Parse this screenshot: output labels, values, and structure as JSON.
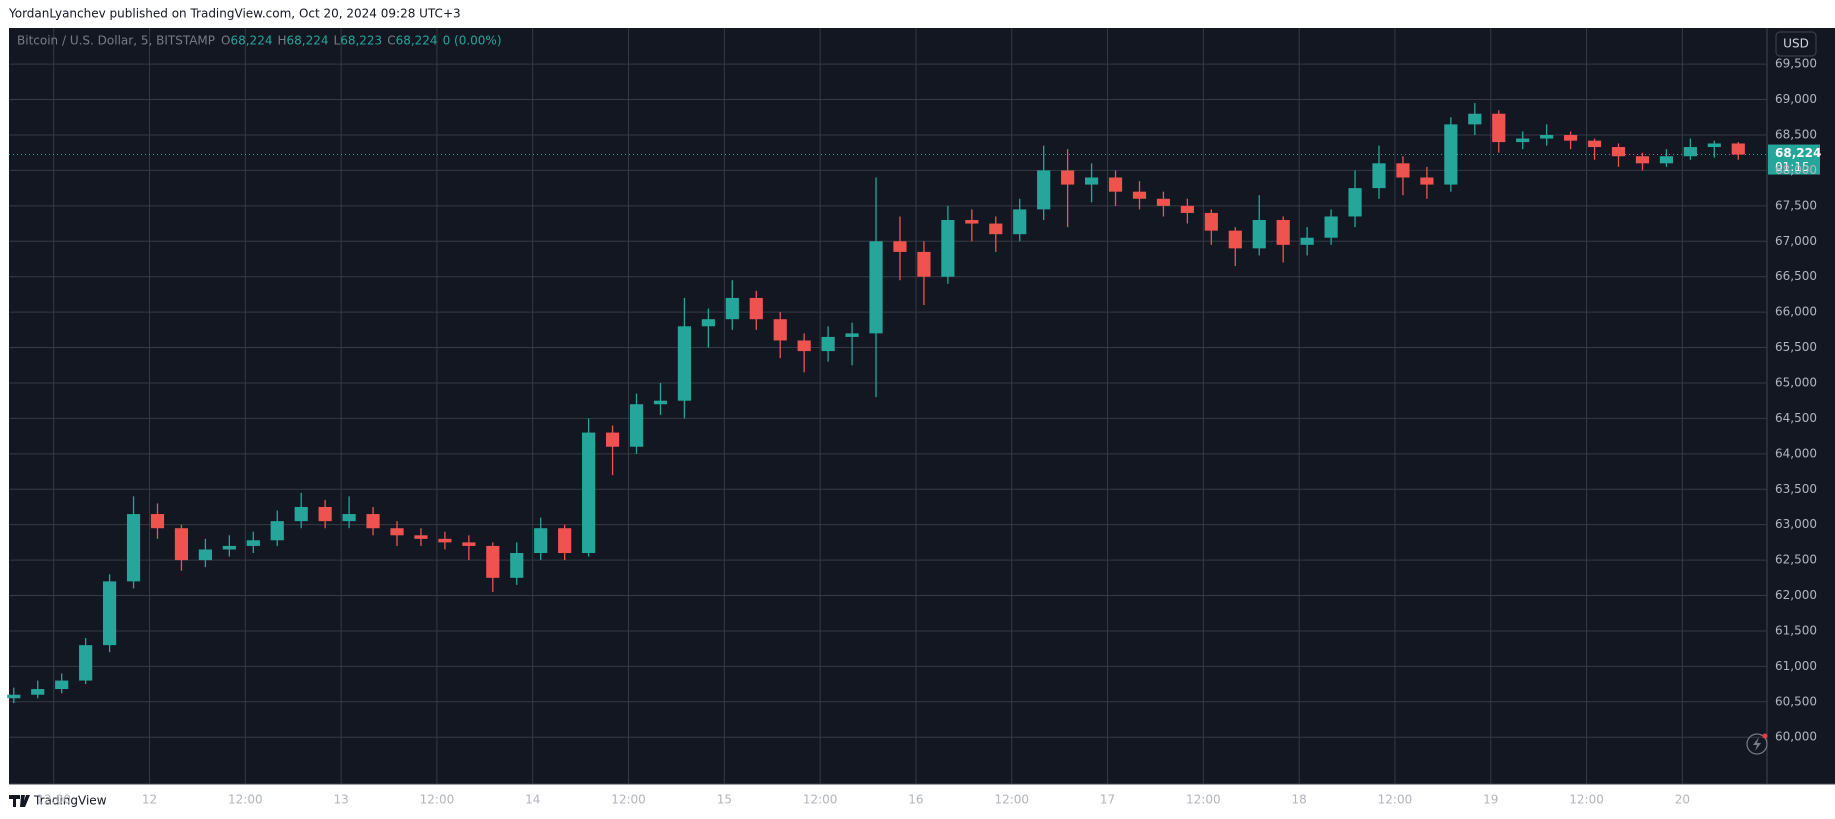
{
  "header": {
    "publisher": "YordanLyanchev published on TradingView.com, Oct 20, 2024 09:28 UTC+3"
  },
  "footer": {
    "brand": "TradingView"
  },
  "currency_button": "USD",
  "chart_data": {
    "type": "candlestick",
    "symbol": "Bitcoin / U.S. Dollar, 5, BITSTAMP",
    "legend": [
      {
        "key": "O",
        "value": "68,224"
      },
      {
        "key": "H",
        "value": "68,224"
      },
      {
        "key": "L",
        "value": "68,223"
      },
      {
        "key": "C",
        "value": "68,224"
      }
    ],
    "change": "0 (0.00%)",
    "last_price": 68224,
    "last_price_label": "68,224",
    "countdown": "01:15",
    "up_color": "#26a69a",
    "down_color": "#ef5350",
    "grid": true,
    "xlim": [
      6.4,
      226.6
    ],
    "xticks": [
      {
        "value": 12,
        "label": "12:00"
      },
      {
        "value": 24,
        "label": "12"
      },
      {
        "value": 36,
        "label": "12:00"
      },
      {
        "value": 48,
        "label": "13"
      },
      {
        "value": 60,
        "label": "12:00"
      },
      {
        "value": 72,
        "label": "14"
      },
      {
        "value": 84,
        "label": "12:00"
      },
      {
        "value": 96,
        "label": "15"
      },
      {
        "value": 108,
        "label": "12:00"
      },
      {
        "value": 120,
        "label": "16"
      },
      {
        "value": 132,
        "label": "12:00"
      },
      {
        "value": 144,
        "label": "17"
      },
      {
        "value": 156,
        "label": "12:00"
      },
      {
        "value": 168,
        "label": "18"
      },
      {
        "value": 180,
        "label": "12:00"
      },
      {
        "value": 192,
        "label": "19"
      },
      {
        "value": 204,
        "label": "12:00"
      },
      {
        "value": 216,
        "label": "20"
      }
    ],
    "ylim": [
      59340,
      70010
    ],
    "yticks": [
      {
        "value": 60000,
        "label": "60,000"
      },
      {
        "value": 60500,
        "label": "60,500"
      },
      {
        "value": 61000,
        "label": "61,000"
      },
      {
        "value": 61500,
        "label": "61,500"
      },
      {
        "value": 62000,
        "label": "62,000"
      },
      {
        "value": 62500,
        "label": "62,500"
      },
      {
        "value": 63000,
        "label": "63,000"
      },
      {
        "value": 63500,
        "label": "63,500"
      },
      {
        "value": 64000,
        "label": "64,000"
      },
      {
        "value": 64500,
        "label": "64,500"
      },
      {
        "value": 65000,
        "label": "65,000"
      },
      {
        "value": 65500,
        "label": "65,500"
      },
      {
        "value": 66000,
        "label": "66,000"
      },
      {
        "value": 66500,
        "label": "66,500"
      },
      {
        "value": 67000,
        "label": "67,000"
      },
      {
        "value": 67500,
        "label": "67,500"
      },
      {
        "value": 68000,
        "label": "68,000"
      },
      {
        "value": 68500,
        "label": "68,500"
      },
      {
        "value": 69000,
        "label": "69,000"
      },
      {
        "value": 69500,
        "label": "69,500"
      }
    ],
    "x": [
      7,
      10,
      13,
      16,
      19,
      22,
      25,
      28,
      31,
      34,
      37,
      40,
      43,
      46,
      49,
      52,
      55,
      58,
      61,
      64,
      67,
      70,
      73,
      76,
      79,
      82,
      85,
      88,
      91,
      94,
      97,
      100,
      103,
      106,
      109,
      112,
      115,
      118,
      121,
      124,
      127,
      130,
      133,
      136,
      139,
      142,
      145,
      148,
      151,
      154,
      157,
      160,
      163,
      166,
      169,
      172,
      175,
      178,
      181,
      184,
      187,
      190,
      193,
      196,
      199,
      202,
      205,
      208,
      211,
      214,
      217,
      220,
      223
    ],
    "open": [
      60550,
      60600,
      60680,
      60800,
      61300,
      62200,
      63150,
      62950,
      62500,
      62650,
      62700,
      62780,
      63050,
      63250,
      63050,
      63150,
      62950,
      62850,
      62800,
      62750,
      62700,
      62250,
      62600,
      62950,
      62600,
      64300,
      64100,
      64700,
      64750,
      65800,
      65900,
      66200,
      65900,
      65600,
      65450,
      65650,
      65700,
      67000,
      66850,
      66500,
      67300,
      67250,
      67100,
      67450,
      68000,
      67800,
      67900,
      67700,
      67600,
      67500,
      67400,
      67150,
      66900,
      67300,
      66950,
      67050,
      67350,
      67750,
      68100,
      67900,
      67800,
      68650,
      68800,
      68400,
      68450,
      68500,
      68420,
      68330,
      68200,
      68100,
      68200,
      68330,
      68380
    ],
    "high": [
      60700,
      60800,
      60900,
      61400,
      62300,
      63400,
      63300,
      63000,
      62800,
      62850,
      62900,
      63200,
      63450,
      63350,
      63400,
      63250,
      63050,
      62950,
      62900,
      62850,
      62750,
      62750,
      63100,
      63000,
      64500,
      64400,
      64850,
      65000,
      66200,
      66050,
      66450,
      66300,
      66000,
      65700,
      65800,
      65850,
      67900,
      67350,
      67000,
      67500,
      67450,
      67350,
      67600,
      68350,
      68300,
      68100,
      68000,
      67850,
      67700,
      67600,
      67450,
      67200,
      67650,
      67350,
      67200,
      67450,
      68000,
      68350,
      68200,
      68050,
      68750,
      68950,
      68850,
      68550,
      68650,
      68550,
      68450,
      68380,
      68250,
      68300,
      68450,
      68420,
      68400
    ],
    "low": [
      60480,
      60550,
      60620,
      60750,
      61200,
      62100,
      62800,
      62350,
      62400,
      62550,
      62600,
      62700,
      62950,
      62950,
      62950,
      62850,
      62700,
      62700,
      62650,
      62500,
      62050,
      62150,
      62500,
      62500,
      62550,
      63700,
      64000,
      64550,
      64500,
      65500,
      65750,
      65750,
      65350,
      65150,
      65300,
      65250,
      64800,
      66450,
      66100,
      66400,
      67000,
      66850,
      67000,
      67300,
      67200,
      67550,
      67500,
      67450,
      67350,
      67250,
      66950,
      66650,
      66800,
      66700,
      66800,
      66950,
      67200,
      67600,
      67650,
      67600,
      67700,
      68500,
      68250,
      68300,
      68350,
      68300,
      68150,
      68050,
      68000,
      68050,
      68150,
      68180,
      68150
    ],
    "close": [
      60600,
      60680,
      60800,
      61300,
      62200,
      63150,
      62950,
      62500,
      62650,
      62700,
      62780,
      63050,
      63250,
      63050,
      63150,
      62950,
      62850,
      62800,
      62750,
      62700,
      62250,
      62600,
      62950,
      62600,
      64300,
      64100,
      64700,
      64750,
      65800,
      65900,
      66200,
      65900,
      65600,
      65450,
      65650,
      65700,
      67000,
      66850,
      66500,
      67300,
      67250,
      67100,
      67450,
      68000,
      67800,
      67900,
      67700,
      67600,
      67500,
      67400,
      67150,
      66900,
      67300,
      66950,
      67050,
      67350,
      67750,
      68100,
      67900,
      67800,
      68650,
      68800,
      68400,
      68450,
      68500,
      68420,
      68330,
      68200,
      68100,
      68200,
      68330,
      68380,
      68224
    ]
  }
}
